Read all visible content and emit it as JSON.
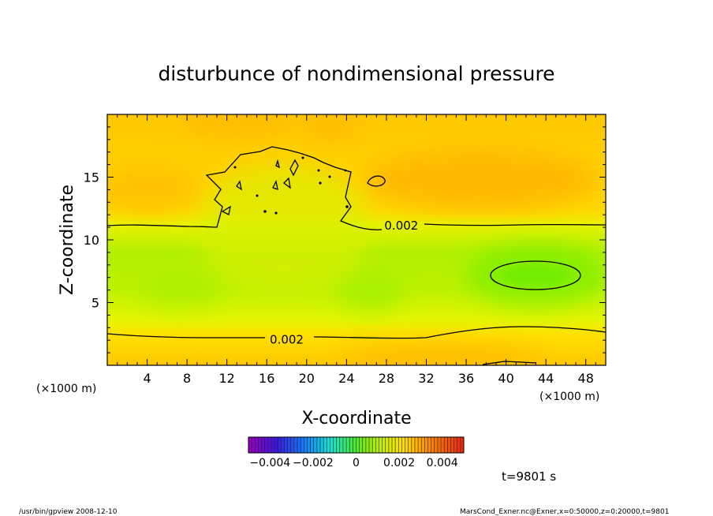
{
  "chart_data": {
    "type": "heatmap",
    "title": "disturbunce of nondimensional pressure",
    "xlabel": "X-coordinate",
    "ylabel": "Z-coordinate",
    "x_unit": "(×1000 m)",
    "y_unit": "(×1000 m)",
    "xlim": [
      0,
      50
    ],
    "ylim": [
      0,
      20
    ],
    "x_ticks": [
      4,
      8,
      12,
      16,
      20,
      24,
      28,
      32,
      36,
      40,
      44,
      48
    ],
    "y_ticks": [
      5,
      10,
      15
    ],
    "contour_labels": [
      {
        "text": "0.002",
        "x": 29.5,
        "z": 11.2
      },
      {
        "text": "0.002",
        "x": 18.0,
        "z": 2.1
      }
    ],
    "colorbar": {
      "range": [
        -0.005,
        0.005
      ],
      "tick_labels": [
        "−0.004",
        "−0.002",
        "0",
        "0.002",
        "0.004"
      ],
      "tick_values": [
        -0.004,
        -0.002,
        0,
        0.002,
        0.004
      ]
    },
    "time_label": "t=9801 s",
    "footer_left": "/usr/bin/gpview   2008-12-10",
    "footer_right": "MarsCond_Exner.nc@Exner,x=0:50000,z=0:20000,t=9801"
  }
}
